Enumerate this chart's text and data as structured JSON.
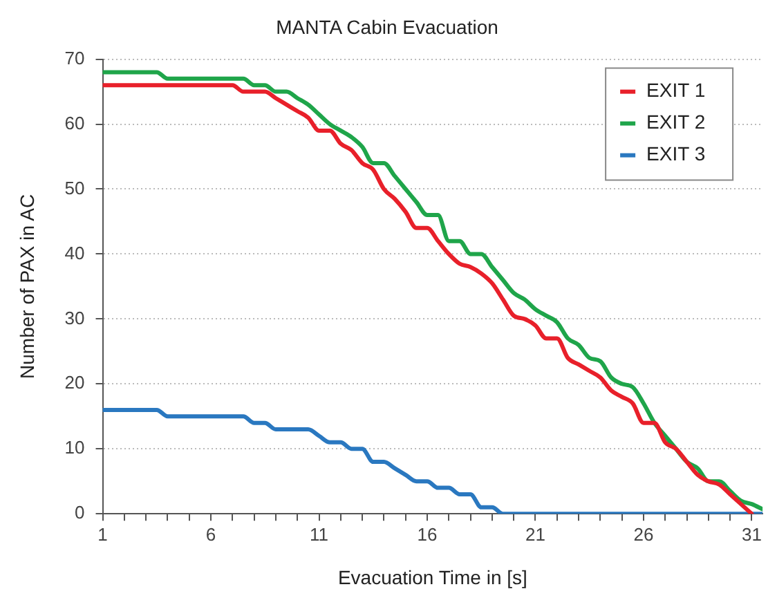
{
  "chart_data": {
    "type": "line",
    "title": "MANTA Cabin Evacuation",
    "xlabel": "Evacuation Time in [s]",
    "ylabel": "Number of PAX in AC",
    "xlim": [
      1,
      31.5
    ],
    "xticks": [
      1,
      {
        "value": 2,
        "label": null
      },
      {
        "value": 3,
        "label": null
      },
      {
        "value": 4,
        "label": null
      },
      {
        "value": 5,
        "label": null
      },
      6,
      {
        "value": 7,
        "label": null
      },
      {
        "value": 8,
        "label": null
      },
      {
        "value": 9,
        "label": null
      },
      {
        "value": 10,
        "label": null
      },
      11,
      {
        "value": 12,
        "label": null
      },
      {
        "value": 13,
        "label": null
      },
      {
        "value": 14,
        "label": null
      },
      {
        "value": 15,
        "label": null
      },
      16,
      {
        "value": 17,
        "label": null
      },
      {
        "value": 18,
        "label": null
      },
      {
        "value": 19,
        "label": null
      },
      {
        "value": 20,
        "label": null
      },
      21,
      {
        "value": 22,
        "label": null
      },
      {
        "value": 23,
        "label": null
      },
      {
        "value": 24,
        "label": null
      },
      {
        "value": 25,
        "label": null
      },
      26,
      {
        "value": 27,
        "label": null
      },
      {
        "value": 28,
        "label": null
      },
      {
        "value": 29,
        "label": null
      },
      {
        "value": 30,
        "label": null
      },
      31
    ],
    "ylim": [
      0,
      70
    ],
    "yticks": [
      0,
      10,
      20,
      30,
      40,
      50,
      60,
      70
    ],
    "grid": "y",
    "legend": "top right",
    "marker": "none",
    "line_style": "solid",
    "series": [
      {
        "name": "EXIT 1",
        "color": "#e8202a",
        "x": [
          1,
          7,
          7.5,
          8.5,
          9,
          9.5,
          10,
          10.5,
          11,
          11.5,
          12,
          12.5,
          13,
          13.5,
          14,
          14.5,
          15,
          15.5,
          16,
          16.5,
          17,
          17.5,
          18,
          18.5,
          19,
          19.5,
          20,
          20.5,
          21,
          21.5,
          22,
          22.5,
          23,
          23.5,
          24,
          24.5,
          25,
          25.5,
          26,
          26.5,
          27,
          27.5,
          28,
          28.5,
          29,
          29.5,
          30,
          30.5,
          31
        ],
        "values": [
          66,
          66,
          65,
          65,
          64,
          63,
          62,
          61,
          59,
          59,
          57,
          56,
          54,
          53,
          50,
          48.5,
          46.5,
          44,
          44,
          42,
          40,
          38.5,
          38,
          37,
          35.5,
          33,
          30.5,
          30,
          29,
          27,
          27,
          24,
          23,
          22,
          21,
          19,
          18,
          17,
          14,
          14,
          11,
          10,
          8,
          6,
          5,
          4.5,
          3,
          1.5,
          0
        ]
      },
      {
        "name": "EXIT 2",
        "color": "#1fa54a",
        "x": [
          1,
          3.5,
          4,
          7.5,
          8,
          8.5,
          9,
          9.5,
          10,
          10.5,
          11,
          11.5,
          12,
          12.5,
          13,
          13.5,
          14,
          14.5,
          15,
          15.5,
          16,
          16.5,
          17,
          17.5,
          18,
          18.5,
          19,
          19.5,
          20,
          20.5,
          21,
          21.5,
          22,
          22.5,
          23,
          23.5,
          24,
          24.5,
          25,
          25.5,
          26,
          26.5,
          27,
          27.5,
          28,
          28.5,
          29,
          29.5,
          30,
          30.5,
          31,
          31.5
        ],
        "values": [
          68,
          68,
          67,
          67,
          66,
          66,
          65,
          65,
          64,
          63,
          61.5,
          60,
          59,
          58,
          56.5,
          54,
          54,
          52,
          50,
          48,
          46,
          46,
          42,
          42,
          40,
          40,
          38,
          36,
          34,
          33,
          31.5,
          30.5,
          29.5,
          27,
          26,
          24,
          23.5,
          21,
          20,
          19.5,
          17,
          14,
          12,
          10,
          8,
          7,
          5,
          5,
          3.5,
          2,
          1.5,
          0.7
        ]
      },
      {
        "name": "EXIT 3",
        "color": "#2a78c0",
        "x": [
          1,
          3.5,
          4,
          7.5,
          8,
          8.5,
          9,
          10.5,
          11,
          11.5,
          12,
          12.5,
          13,
          13.5,
          14,
          14.5,
          15,
          15.5,
          16,
          16.5,
          17,
          17.5,
          18,
          18.5,
          19,
          19.5,
          31.5
        ],
        "values": [
          16,
          16,
          15,
          15,
          14,
          14,
          13,
          13,
          12,
          11,
          11,
          10,
          10,
          8,
          8,
          7,
          6,
          5,
          5,
          4,
          4,
          3,
          3,
          1,
          1,
          0,
          0
        ]
      }
    ]
  }
}
